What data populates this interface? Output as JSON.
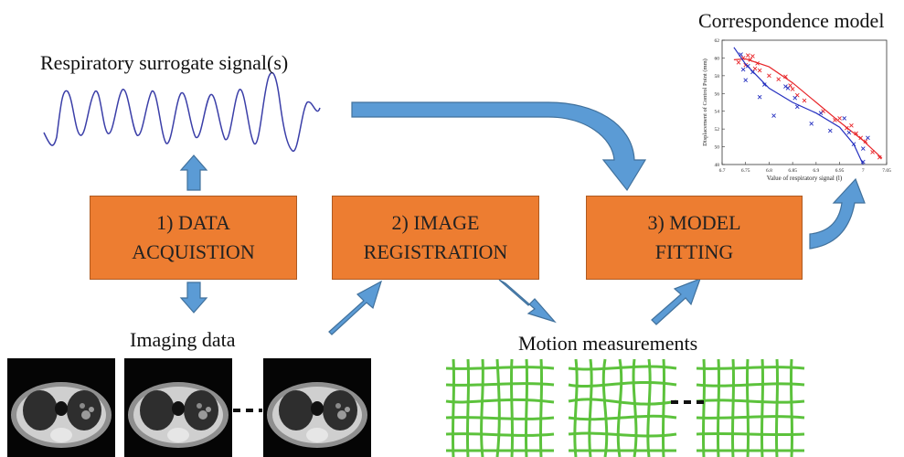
{
  "labels": {
    "surrogate": "Respiratory surrogate signal(s)",
    "correspondence": "Correspondence model",
    "imaging": "Imaging data",
    "motion": "Motion measurements"
  },
  "steps": [
    {
      "line1": "1) DATA",
      "line2": "ACQUISTION"
    },
    {
      "line1": "2) IMAGE",
      "line2": "REGISTRATION"
    },
    {
      "line1": "3) MODEL",
      "line2": "FITTING"
    }
  ],
  "colors": {
    "box_fill": "#ED7D31",
    "arrow_fill": "#5B9BD5",
    "arrow_edge": "#41719C",
    "grid": "#5CC23C",
    "signal": "#3B3FA8",
    "series_red": "#E8262A",
    "series_blue": "#2530C0"
  },
  "chart_data": {
    "type": "scatter",
    "xlabel": "Value of respiratory signal (l)",
    "ylabel": "Displacement of Control Point (mm)",
    "xlim": [
      6.7,
      7.05
    ],
    "ylim": [
      48,
      62
    ],
    "x_ticks": [
      "6.7",
      "6.75",
      "6.8",
      "6.85",
      "6.9",
      "6.95",
      "7",
      "7.05"
    ],
    "y_ticks": [
      "48",
      "50",
      "52",
      "54",
      "56",
      "58",
      "60",
      "62"
    ],
    "series": [
      {
        "color": "#E8262A",
        "points": [
          [
            6.735,
            59.5
          ],
          [
            6.745,
            60.0
          ],
          [
            6.75,
            59.2
          ],
          [
            6.755,
            60.3
          ],
          [
            6.76,
            59.8
          ],
          [
            6.765,
            60.2
          ],
          [
            6.77,
            58.8
          ],
          [
            6.775,
            59.4
          ],
          [
            6.78,
            58.6
          ],
          [
            6.8,
            58.0
          ],
          [
            6.82,
            57.6
          ],
          [
            6.835,
            57.9
          ],
          [
            6.845,
            56.9
          ],
          [
            6.85,
            56.5
          ],
          [
            6.86,
            55.8
          ],
          [
            6.875,
            55.2
          ],
          [
            6.915,
            54.0
          ],
          [
            6.94,
            53.0
          ],
          [
            6.95,
            53.2
          ],
          [
            6.965,
            52.1
          ],
          [
            6.975,
            52.4
          ],
          [
            6.985,
            51.5
          ],
          [
            6.995,
            51.0
          ],
          [
            7.005,
            50.6
          ],
          [
            7.02,
            49.4
          ],
          [
            7.035,
            48.8
          ]
        ],
        "fit": [
          [
            6.725,
            59.8
          ],
          [
            6.75,
            59.9
          ],
          [
            6.8,
            59.0
          ],
          [
            6.85,
            57.2
          ],
          [
            6.9,
            55.0
          ],
          [
            6.95,
            52.8
          ],
          [
            7.0,
            50.7
          ],
          [
            7.04,
            48.7
          ]
        ]
      },
      {
        "color": "#2530C0",
        "points": [
          [
            6.74,
            60.4
          ],
          [
            6.745,
            58.7
          ],
          [
            6.75,
            57.5
          ],
          [
            6.755,
            59.1
          ],
          [
            6.765,
            58.4
          ],
          [
            6.78,
            55.6
          ],
          [
            6.79,
            57.0
          ],
          [
            6.81,
            53.5
          ],
          [
            6.835,
            56.8
          ],
          [
            6.84,
            56.6
          ],
          [
            6.855,
            55.5
          ],
          [
            6.86,
            54.5
          ],
          [
            6.89,
            52.6
          ],
          [
            6.91,
            53.8
          ],
          [
            6.93,
            51.8
          ],
          [
            6.96,
            53.2
          ],
          [
            6.97,
            51.6
          ],
          [
            6.98,
            50.3
          ],
          [
            7.0,
            49.8
          ],
          [
            7.01,
            51.0
          ],
          [
            7.0,
            48.3
          ]
        ],
        "fit": [
          [
            6.725,
            61.2
          ],
          [
            6.75,
            59.3
          ],
          [
            6.8,
            56.6
          ],
          [
            6.85,
            55.0
          ],
          [
            6.9,
            53.8
          ],
          [
            6.95,
            52.2
          ],
          [
            6.98,
            50.3
          ],
          [
            7.0,
            48.0
          ]
        ]
      }
    ]
  }
}
